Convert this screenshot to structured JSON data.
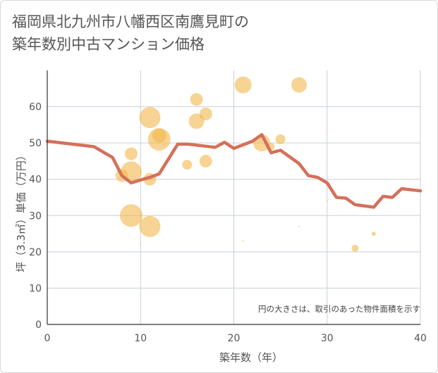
{
  "chart_data": {
    "type": "scatter",
    "title_line1": "福岡県北九州市八幡西区南鷹見町の",
    "title_line2": "築年数別中古マンション価格",
    "xlabel": "築年数（年）",
    "ylabel": "坪（3.3㎡）単価（万円）",
    "note": "円の大きさは、取引のあった物件面積を示す",
    "xlim": [
      0,
      40
    ],
    "ylim": [
      0,
      70
    ],
    "x_ticks": [
      0,
      10,
      20,
      30,
      40
    ],
    "y_ticks": [
      0,
      10,
      20,
      30,
      40,
      50,
      60
    ],
    "grid": true,
    "colors": {
      "bubble": "#f2b84b",
      "line": "#d4705a",
      "grid": "#c7d0dc",
      "axis": "#333333"
    },
    "bubbles": [
      {
        "x": 8,
        "y": 41,
        "r": 9
      },
      {
        "x": 9,
        "y": 47,
        "r": 9
      },
      {
        "x": 9,
        "y": 42,
        "r": 15
      },
      {
        "x": 9,
        "y": 30,
        "r": 16
      },
      {
        "x": 10,
        "y": 22,
        "r": 1
      },
      {
        "x": 11,
        "y": 57,
        "r": 15
      },
      {
        "x": 11,
        "y": 40,
        "r": 9
      },
      {
        "x": 11,
        "y": 27,
        "r": 15
      },
      {
        "x": 12,
        "y": 52,
        "r": 10
      },
      {
        "x": 12,
        "y": 51,
        "r": 16
      },
      {
        "x": 15,
        "y": 44,
        "r": 7
      },
      {
        "x": 16,
        "y": 62,
        "r": 9
      },
      {
        "x": 16,
        "y": 56,
        "r": 11
      },
      {
        "x": 17,
        "y": 58,
        "r": 9
      },
      {
        "x": 17,
        "y": 45,
        "r": 9
      },
      {
        "x": 21,
        "y": 66,
        "r": 12
      },
      {
        "x": 21,
        "y": 23,
        "r": 1
      },
      {
        "x": 23,
        "y": 50,
        "r": 12
      },
      {
        "x": 24,
        "y": 49,
        "r": 5
      },
      {
        "x": 25,
        "y": 51,
        "r": 7
      },
      {
        "x": 27,
        "y": 66,
        "r": 11
      },
      {
        "x": 27,
        "y": 27,
        "r": 1
      },
      {
        "x": 30,
        "y": 34,
        "r": 1
      },
      {
        "x": 33,
        "y": 21,
        "r": 5
      },
      {
        "x": 35,
        "y": 25,
        "r": 3
      }
    ],
    "line": [
      {
        "x": 0,
        "y": 50.5
      },
      {
        "x": 5,
        "y": 49
      },
      {
        "x": 7,
        "y": 46
      },
      {
        "x": 8,
        "y": 41
      },
      {
        "x": 9,
        "y": 39
      },
      {
        "x": 10,
        "y": 39.8
      },
      {
        "x": 11,
        "y": 40.5
      },
      {
        "x": 12,
        "y": 41.5
      },
      {
        "x": 14,
        "y": 49.7
      },
      {
        "x": 15,
        "y": 49.7
      },
      {
        "x": 18,
        "y": 48.8
      },
      {
        "x": 19,
        "y": 50.2
      },
      {
        "x": 20,
        "y": 48.5
      },
      {
        "x": 22,
        "y": 50.5
      },
      {
        "x": 23,
        "y": 52.3
      },
      {
        "x": 24,
        "y": 47.3
      },
      {
        "x": 25,
        "y": 48
      },
      {
        "x": 27,
        "y": 44.3
      },
      {
        "x": 28,
        "y": 41
      },
      {
        "x": 29,
        "y": 40.5
      },
      {
        "x": 30,
        "y": 39
      },
      {
        "x": 31,
        "y": 35
      },
      {
        "x": 32,
        "y": 34.8
      },
      {
        "x": 33,
        "y": 33
      },
      {
        "x": 35,
        "y": 32.3
      },
      {
        "x": 36,
        "y": 35.3
      },
      {
        "x": 37,
        "y": 35
      },
      {
        "x": 38,
        "y": 37.4
      },
      {
        "x": 40,
        "y": 36.8
      }
    ]
  }
}
